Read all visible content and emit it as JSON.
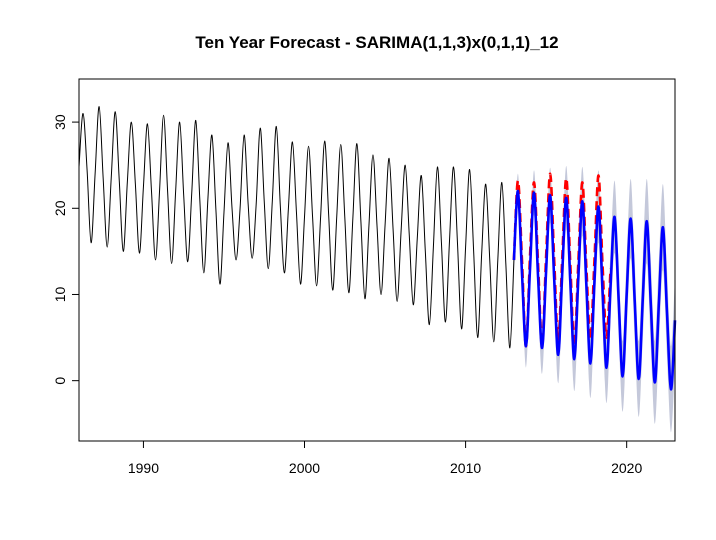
{
  "chart_data": {
    "type": "line",
    "title": "Ten Year Forecast - SARIMA(1,1,3)x(0,1,1)_12",
    "xlabel": "",
    "ylabel": "",
    "xlim": [
      1986,
      2023
    ],
    "ylim": [
      -7,
      35
    ],
    "x_ticks": [
      1990,
      2000,
      2010,
      2020
    ],
    "y_ticks": [
      0,
      10,
      20,
      30
    ],
    "grid": false,
    "series": [
      {
        "color": "#000000",
        "style": "solid",
        "x": [
          1986.0,
          1986.25,
          1986.5,
          1986.75,
          1987.0,
          1987.25,
          1987.5,
          1987.75,
          1988.0,
          1988.25,
          1988.5,
          1988.75,
          1989.0,
          1989.25,
          1989.5,
          1989.75,
          1990.0,
          1990.25,
          1990.5,
          1990.75,
          1991.0,
          1991.25,
          1991.5,
          1991.75,
          1992.0,
          1992.25,
          1992.5,
          1992.75,
          1993.0,
          1993.25,
          1993.5,
          1993.75,
          1994.0,
          1994.25,
          1994.5,
          1994.75,
          1995.0,
          1995.25,
          1995.5,
          1995.75,
          1996.0,
          1996.25,
          1996.5,
          1996.75,
          1997.0,
          1997.25,
          1997.5,
          1997.75,
          1998.0,
          1998.25,
          1998.5,
          1998.75,
          1999.0,
          1999.25,
          1999.5,
          1999.75,
          2000.0,
          2000.25,
          2000.5,
          2000.75,
          2001.0,
          2001.25,
          2001.5,
          2001.75,
          2002.0,
          2002.25,
          2002.5,
          2002.75,
          2003.0,
          2003.25,
          2003.5,
          2003.75,
          2004.0,
          2004.25,
          2004.5,
          2004.75,
          2005.0,
          2005.25,
          2005.5,
          2005.75,
          2006.0,
          2006.25,
          2006.5,
          2006.75,
          2007.0,
          2007.25,
          2007.5,
          2007.75,
          2008.0,
          2008.25,
          2008.5,
          2008.75,
          2009.0,
          2009.25,
          2009.5,
          2009.75,
          2010.0,
          2010.25,
          2010.5,
          2010.75,
          2011.0,
          2011.25,
          2011.5,
          2011.75,
          2012.0,
          2012.25,
          2012.5,
          2012.75,
          2013.0
        ],
        "values": [
          24.8,
          31.0,
          24.5,
          16.0,
          24.0,
          31.8,
          23.5,
          15.5,
          23.5,
          31.2,
          23.2,
          15.0,
          23.0,
          30.0,
          22.8,
          14.8,
          22.5,
          29.8,
          22.0,
          14.0,
          22.0,
          30.8,
          22.0,
          13.6,
          22.0,
          30.0,
          21.5,
          13.8,
          21.8,
          30.2,
          21.0,
          12.5,
          21.0,
          28.5,
          19.8,
          11.2,
          19.5,
          27.6,
          20.0,
          14.0,
          20.0,
          28.5,
          20.5,
          14.2,
          20.5,
          29.3,
          20.8,
          13.0,
          20.8,
          29.5,
          20.2,
          12.5,
          20.0,
          27.7,
          19.5,
          11.2,
          19.0,
          27.2,
          19.0,
          11.0,
          19.0,
          27.8,
          19.2,
          10.5,
          19.0,
          27.4,
          19.0,
          10.2,
          18.8,
          27.5,
          18.5,
          9.5,
          18.0,
          26.2,
          18.0,
          10.0,
          18.0,
          25.8,
          17.5,
          9.2,
          17.5,
          25.0,
          17.0,
          8.8,
          16.5,
          23.8,
          15.0,
          6.5,
          15.5,
          24.8,
          16.0,
          6.8,
          16.2,
          24.8,
          15.8,
          6.0,
          15.5,
          24.5,
          15.0,
          5.0,
          14.8,
          22.8,
          14.0,
          4.5,
          14.0,
          23.0,
          13.5,
          3.8,
          14.0
        ]
      },
      {
        "color": "#ff0000",
        "style": "dashed",
        "x": [
          2013.0,
          2013.25,
          2013.5,
          2013.75,
          2014.0,
          2014.25,
          2014.5,
          2014.75,
          2015.0,
          2015.25,
          2015.5,
          2015.75,
          2016.0,
          2016.25,
          2016.5,
          2016.75,
          2017.0,
          2017.25,
          2017.5,
          2017.75,
          2018.0,
          2018.25,
          2018.5,
          2018.75,
          2019.0
        ],
        "values": [
          14.0,
          23.2,
          14.0,
          4.0,
          14.5,
          23.0,
          13.5,
          4.2,
          14.5,
          24.0,
          14.0,
          4.5,
          14.2,
          23.5,
          13.5,
          4.0,
          13.8,
          23.0,
          13.0,
          4.8,
          14.0,
          23.8,
          13.5,
          5.0,
          13.0
        ]
      },
      {
        "color": "#0000ff",
        "style": "solid",
        "x": [
          2013.0,
          2013.25,
          2013.5,
          2013.75,
          2014.0,
          2014.25,
          2014.5,
          2014.75,
          2015.0,
          2015.25,
          2015.5,
          2015.75,
          2016.0,
          2016.25,
          2016.5,
          2016.75,
          2017.0,
          2017.25,
          2017.5,
          2017.75,
          2018.0,
          2018.25,
          2018.5,
          2018.75,
          2019.0,
          2019.25,
          2019.5,
          2019.75,
          2020.0,
          2020.25,
          2020.5,
          2020.75,
          2021.0,
          2021.25,
          2021.5,
          2021.75,
          2022.0,
          2022.25,
          2022.5,
          2022.75,
          2023.0
        ],
        "values": [
          14.0,
          22.0,
          12.5,
          4.0,
          13.0,
          21.8,
          12.0,
          3.8,
          12.8,
          21.5,
          11.8,
          3.0,
          12.5,
          21.2,
          11.5,
          2.5,
          12.0,
          20.8,
          11.0,
          2.0,
          11.5,
          20.2,
          10.5,
          1.5,
          11.0,
          19.0,
          9.5,
          0.5,
          10.0,
          18.8,
          9.2,
          0.2,
          9.5,
          18.5,
          8.8,
          -0.2,
          9.0,
          17.8,
          8.0,
          -1.0,
          7.0
        ]
      }
    ],
    "band": {
      "color": "#c4c8da",
      "x": [
        2013.0,
        2013.25,
        2013.5,
        2013.75,
        2014.0,
        2014.25,
        2014.5,
        2014.75,
        2015.0,
        2015.25,
        2015.5,
        2015.75,
        2016.0,
        2016.25,
        2016.5,
        2016.75,
        2017.0,
        2017.25,
        2017.5,
        2017.75,
        2018.0,
        2018.25,
        2018.5,
        2018.75,
        2019.0,
        2019.25,
        2019.5,
        2019.75,
        2020.0,
        2020.25,
        2020.5,
        2020.75,
        2021.0,
        2021.25,
        2021.5,
        2021.75,
        2022.0,
        2022.25,
        2022.5,
        2022.75,
        2023.0
      ],
      "lower": [
        12.5,
        20.0,
        10.5,
        1.5,
        10.8,
        19.2,
        9.2,
        0.8,
        9.8,
        18.3,
        8.5,
        -0.3,
        9.0,
        17.5,
        7.8,
        -1.2,
        8.2,
        16.8,
        7.0,
        -2.0,
        7.5,
        16.0,
        6.3,
        -2.6,
        6.8,
        14.8,
        5.2,
        -3.6,
        5.6,
        14.2,
        4.6,
        -4.2,
        4.8,
        13.6,
        3.8,
        -5.0,
        4.0,
        12.8,
        3.0,
        -6.0,
        2.0
      ],
      "upper": [
        15.5,
        24.0,
        14.5,
        6.5,
        15.2,
        24.4,
        14.8,
        6.8,
        15.8,
        24.7,
        15.1,
        6.3,
        16.0,
        24.9,
        15.2,
        6.2,
        15.8,
        24.8,
        15.0,
        6.0,
        15.5,
        24.4,
        14.7,
        5.6,
        15.2,
        23.2,
        13.8,
        4.6,
        14.4,
        23.4,
        13.8,
        4.6,
        14.2,
        23.4,
        13.8,
        4.6,
        14.0,
        22.8,
        13.0,
        4.0,
        12.0
      ]
    }
  }
}
